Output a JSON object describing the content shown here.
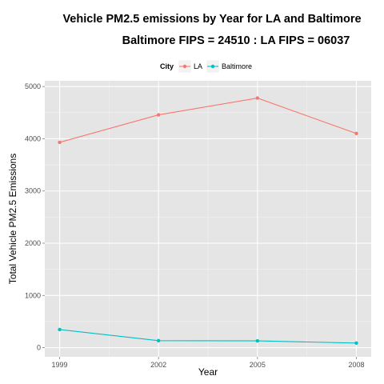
{
  "chart_data": {
    "type": "line",
    "title": "Vehicle PM2.5 emissions by Year for LA and Baltimore",
    "subtitle": "Baltimore FIPS = 24510 : LA FIPS = 06037",
    "xlabel": "Year",
    "ylabel": "Total Vehicle PM2.5 Emissions",
    "x": [
      1999,
      2002,
      2005,
      2008
    ],
    "xticks": [
      "1999",
      "2002",
      "2005",
      "2008"
    ],
    "yticks": [
      "0",
      "1000",
      "2000",
      "3000",
      "4000",
      "5000"
    ],
    "ylim": [
      -175,
      5110
    ],
    "xlim": [
      1998.55,
      2008.45
    ],
    "grid": true,
    "legend": {
      "title": "City",
      "placement": "top",
      "entries": [
        "LA",
        "Baltimore"
      ]
    },
    "series": [
      {
        "name": "LA",
        "color": "#F8766D",
        "values": [
          3931,
          4458,
          4779,
          4101
        ]
      },
      {
        "name": "Baltimore",
        "color": "#00BFC4",
        "values": [
          347,
          134,
          130,
          89
        ]
      }
    ]
  }
}
